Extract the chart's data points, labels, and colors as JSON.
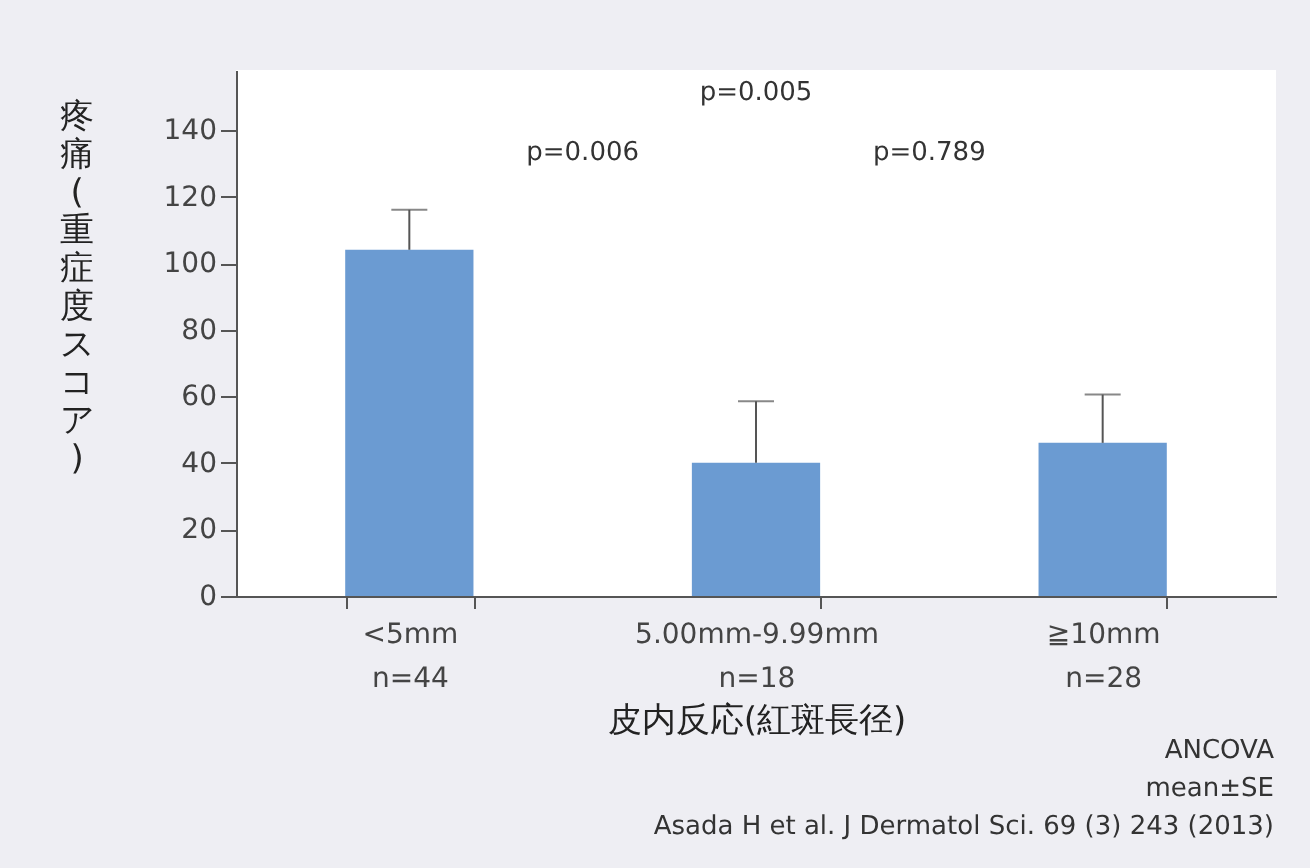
{
  "chart_data": {
    "type": "bar",
    "xlabel": "皮内反応(紅斑長径)",
    "ylabel": "疼痛(重症度スコア)",
    "categories": [
      "<5mm\nn=44",
      "5.00mm-9.99mm\nn=18",
      "≧10mm\nn=28"
    ],
    "values": [
      104,
      40,
      46
    ],
    "color": "#6b9bd2",
    "errors": [
      [
        104,
        116
      ],
      [
        40,
        58.5
      ],
      [
        46,
        60.5
      ]
    ],
    "ylim": [
      0,
      158
    ],
    "yticks": [
      0,
      20,
      40,
      60,
      80,
      100,
      120,
      140
    ],
    "grid": false,
    "annotations": [
      "p=0.005",
      "p=0.006",
      "p=0.789",
      "ANCOVA",
      "mean±SE",
      "Asada H et al. J Dermatol Sci. 69 (3) 243 (2013)"
    ]
  }
}
